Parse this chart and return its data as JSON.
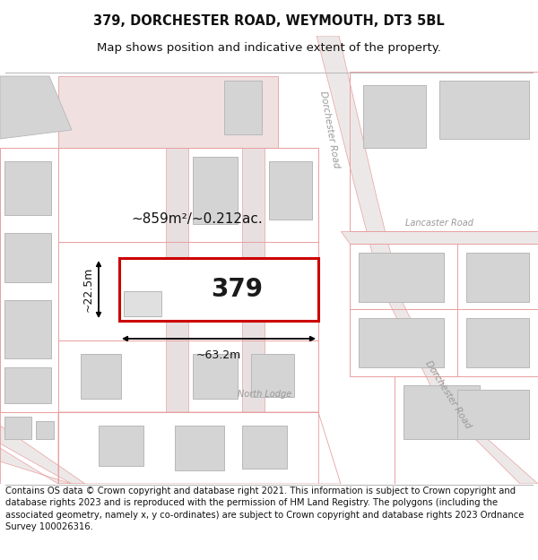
{
  "title_line1": "379, DORCHESTER ROAD, WEYMOUTH, DT3 5BL",
  "title_line2": "Map shows position and indicative extent of the property.",
  "footer_text": "Contains OS data © Crown copyright and database right 2021. This information is subject to Crown copyright and database rights 2023 and is reproduced with the permission of HM Land Registry. The polygons (including the associated geometry, namely x, y co-ordinates) are subject to Crown copyright and database rights 2023 Ordnance Survey 100026316.",
  "road_outline_color": "#e8a0a0",
  "road_fill_color": "#f0e0e0",
  "road_band_color": "#d8c8c8",
  "building_fill": "#d4d4d4",
  "building_stroke": "#b8b8b8",
  "highlight_fill": "#ffffff",
  "highlight_stroke": "#cc0000",
  "road_label_color": "#999999",
  "map_bg": "#f9f7f7",
  "plot_label": "379",
  "area_label": "~859m²/~0.212ac.",
  "width_label": "~63.2m",
  "height_label": "~22.5m",
  "title_fontsize": 10.5,
  "subtitle_fontsize": 9.5,
  "footer_fontsize": 7.2,
  "measurement_fontsize": 9
}
